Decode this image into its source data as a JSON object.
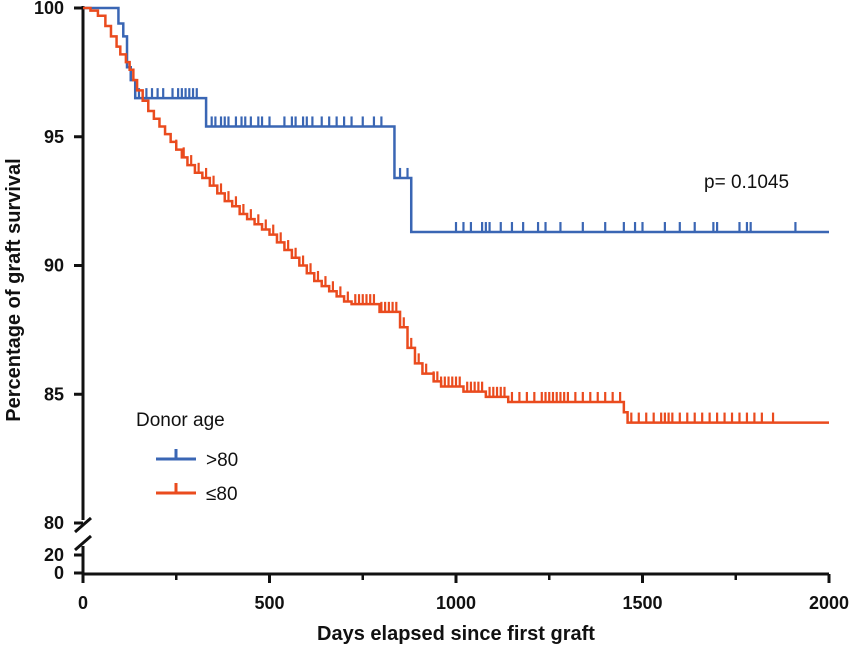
{
  "chart_data": {
    "type": "line",
    "subtype": "kaplan-meier",
    "title": "",
    "xlabel": "Days elapsed since first graft",
    "ylabel": "Percentage of graft survival",
    "xlim": [
      0,
      2000
    ],
    "x_ticks": [
      0,
      500,
      1000,
      1500,
      2000
    ],
    "ylim_upper": [
      80,
      100
    ],
    "y_ticks_upper": [
      80,
      85,
      90,
      95,
      100
    ],
    "ylim_lower": [
      0,
      20
    ],
    "y_ticks_lower": [
      0,
      20
    ],
    "annotation": "p= 0.1045",
    "legend": {
      "title": "Donor age",
      "position": "lower-left",
      "entries": [
        ">80",
        "≤80"
      ]
    },
    "colors": {
      "gt80": "#3a66b4",
      "le80": "#ea4b1e",
      "axis": "#111111"
    },
    "series": [
      {
        "name": ">80",
        "color": "#3a66b4",
        "steps": [
          [
            0,
            100
          ],
          [
            95,
            99.4
          ],
          [
            108,
            98.9
          ],
          [
            118,
            97.7
          ],
          [
            128,
            97.2
          ],
          [
            140,
            96.5
          ],
          [
            330,
            95.4
          ],
          [
            835,
            93.4
          ],
          [
            880,
            91.3
          ],
          [
            2000,
            91.3
          ]
        ],
        "censors": [
          150,
          170,
          185,
          200,
          215,
          240,
          255,
          265,
          275,
          285,
          295,
          305,
          345,
          355,
          370,
          380,
          390,
          410,
          425,
          435,
          450,
          470,
          480,
          500,
          540,
          560,
          570,
          590,
          600,
          615,
          640,
          660,
          680,
          700,
          720,
          750,
          780,
          800,
          850,
          870,
          1000,
          1020,
          1040,
          1070,
          1080,
          1090,
          1120,
          1150,
          1180,
          1220,
          1240,
          1280,
          1340,
          1400,
          1450,
          1480,
          1500,
          1560,
          1600,
          1640,
          1690,
          1700,
          1760,
          1780,
          1790,
          1910
        ]
      },
      {
        "name": "≤80",
        "color": "#ea4b1e",
        "steps": [
          [
            0,
            100
          ],
          [
            20,
            99.9
          ],
          [
            40,
            99.7
          ],
          [
            60,
            99.3
          ],
          [
            75,
            98.9
          ],
          [
            90,
            98.5
          ],
          [
            100,
            98.2
          ],
          [
            115,
            97.9
          ],
          [
            125,
            97.6
          ],
          [
            135,
            97.2
          ],
          [
            145,
            96.8
          ],
          [
            160,
            96.4
          ],
          [
            175,
            96.0
          ],
          [
            190,
            95.7
          ],
          [
            205,
            95.4
          ],
          [
            220,
            95.1
          ],
          [
            235,
            94.8
          ],
          [
            250,
            94.5
          ],
          [
            265,
            94.2
          ],
          [
            280,
            93.9
          ],
          [
            300,
            93.6
          ],
          [
            320,
            93.4
          ],
          [
            340,
            93.1
          ],
          [
            360,
            92.8
          ],
          [
            380,
            92.5
          ],
          [
            400,
            92.3
          ],
          [
            420,
            92.0
          ],
          [
            440,
            91.8
          ],
          [
            460,
            91.6
          ],
          [
            480,
            91.4
          ],
          [
            500,
            91.2
          ],
          [
            520,
            90.9
          ],
          [
            540,
            90.6
          ],
          [
            560,
            90.3
          ],
          [
            580,
            90.0
          ],
          [
            600,
            89.7
          ],
          [
            620,
            89.4
          ],
          [
            640,
            89.2
          ],
          [
            660,
            89.0
          ],
          [
            680,
            88.8
          ],
          [
            700,
            88.6
          ],
          [
            720,
            88.5
          ],
          [
            795,
            88.2
          ],
          [
            850,
            87.6
          ],
          [
            870,
            86.8
          ],
          [
            890,
            86.2
          ],
          [
            910,
            85.8
          ],
          [
            940,
            85.5
          ],
          [
            960,
            85.3
          ],
          [
            1020,
            85.1
          ],
          [
            1080,
            84.9
          ],
          [
            1140,
            84.7
          ],
          [
            1450,
            84.3
          ],
          [
            1460,
            83.9
          ],
          [
            2000,
            83.9
          ]
        ],
        "censors": [
          250,
          270,
          290,
          310,
          330,
          350,
          370,
          390,
          410,
          430,
          450,
          470,
          490,
          510,
          530,
          550,
          570,
          590,
          610,
          630,
          650,
          670,
          690,
          710,
          730,
          740,
          750,
          760,
          770,
          780,
          800,
          810,
          820,
          830,
          840,
          860,
          880,
          900,
          920,
          940,
          950,
          960,
          970,
          980,
          990,
          1000,
          1010,
          1030,
          1040,
          1050,
          1060,
          1070,
          1090,
          1100,
          1110,
          1120,
          1130,
          1150,
          1170,
          1190,
          1210,
          1230,
          1240,
          1250,
          1260,
          1270,
          1280,
          1290,
          1300,
          1320,
          1340,
          1360,
          1380,
          1400,
          1420,
          1440,
          1470,
          1490,
          1510,
          1530,
          1550,
          1560,
          1570,
          1580,
          1600,
          1620,
          1640,
          1660,
          1680,
          1700,
          1720,
          1740,
          1760,
          1780,
          1800,
          1820,
          1850
        ]
      }
    ]
  }
}
